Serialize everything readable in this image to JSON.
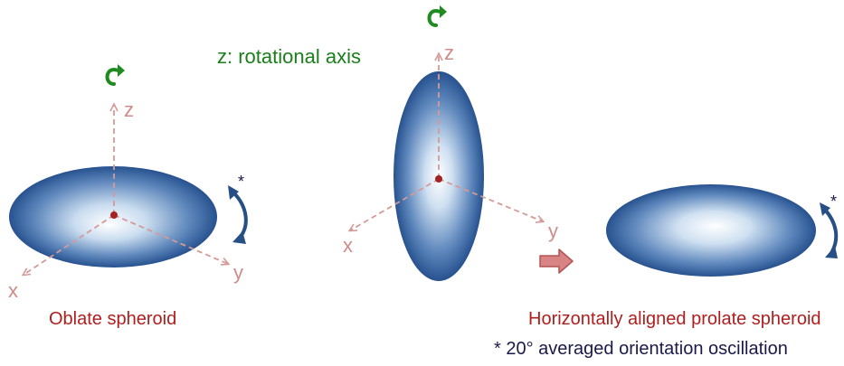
{
  "caption": {
    "rotation_axis": "z: rotational axis",
    "oblate": "Oblate spheroid",
    "prolate_horizontal": "Horizontally aligned prolate spheroid",
    "footnote": "* 20° averaged orientation oscillation"
  },
  "axes": {
    "x": "x",
    "y": "y",
    "z": "z"
  },
  "marks": {
    "asterisk": "*"
  },
  "colors": {
    "spheroid_edge": "#24508f",
    "spheroid_center": "#ffffff",
    "axis": "#d49a98",
    "axis_label": "#d08c8a",
    "center_dot": "#a32222",
    "rotation_arrow": "#1f8a1f",
    "oscillation_arrow": "#264f86",
    "caption_red": "#b01e1e",
    "caption_green": "#1a7f1a",
    "footnote": "#1a1a4a",
    "transition_arrow": "#d98484"
  },
  "icons": {
    "rotation": "curved-rotation-arrow-icon",
    "oscillation": "curved-double-arrow-icon",
    "transition": "block-right-arrow-icon"
  }
}
